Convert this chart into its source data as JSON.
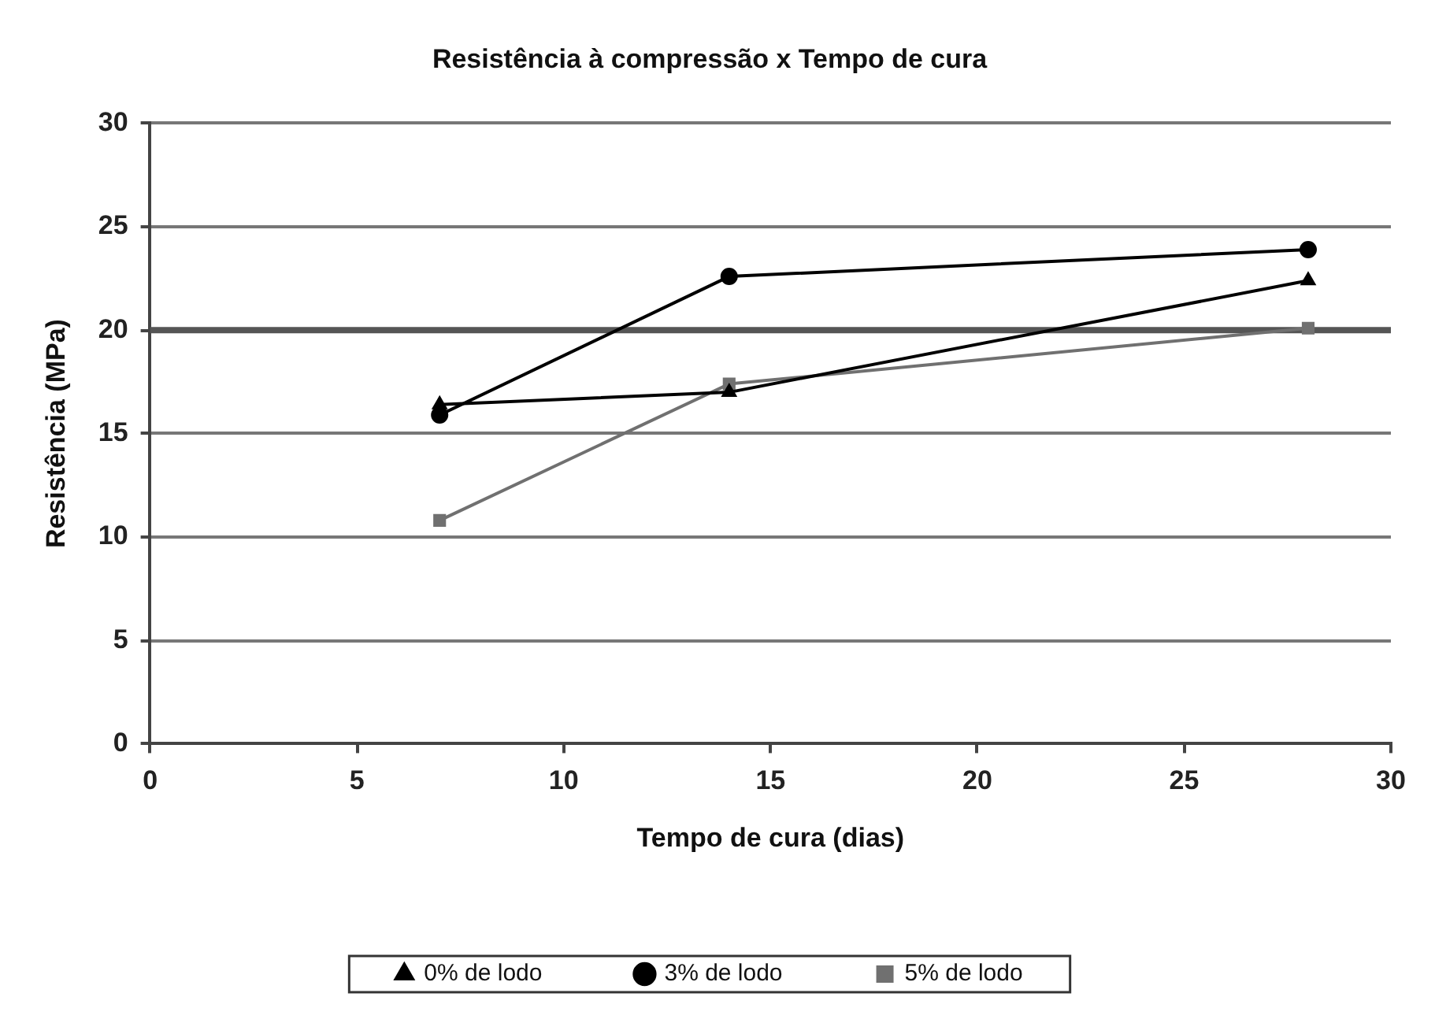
{
  "chart_data": {
    "type": "line",
    "title": "Resistência à compressão x Tempo de cura",
    "xlabel": "Tempo de cura (dias)",
    "ylabel": "Resistência (MPa)",
    "x": [
      7,
      14,
      28
    ],
    "series": [
      {
        "name": "0% de lodo",
        "color": "#000000",
        "marker": "triangle",
        "values": [
          16.4,
          17.0,
          22.4
        ]
      },
      {
        "name": "3% de lodo",
        "color": "#000000",
        "marker": "circle",
        "values": [
          15.9,
          22.6,
          23.9
        ]
      },
      {
        "name": "5% de lodo",
        "color": "#707070",
        "marker": "square",
        "values": [
          10.8,
          17.4,
          20.1
        ]
      }
    ],
    "xlim": [
      0,
      30
    ],
    "xticks": [
      0,
      5,
      10,
      15,
      20,
      25,
      30
    ],
    "ylim": [
      0,
      30
    ],
    "yticks": [
      0,
      5,
      10,
      15,
      20,
      25,
      30
    ],
    "ref_lines": [
      {
        "axis": "y",
        "value": 20,
        "color": "#555555"
      }
    ],
    "grid": "y",
    "legend": "bottom"
  }
}
